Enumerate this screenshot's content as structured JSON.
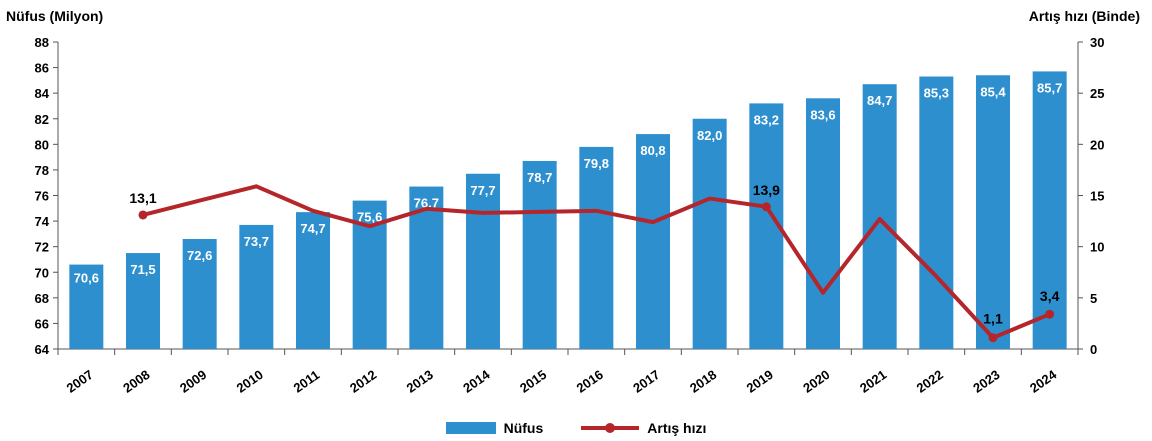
{
  "chart_data": {
    "type": "bar",
    "left_axis_title": "Nüfus (Milyon)",
    "right_axis_title": "Artış hızı (Binde)",
    "categories": [
      "2007",
      "2008",
      "2009",
      "2010",
      "2011",
      "2012",
      "2013",
      "2014",
      "2015",
      "2016",
      "2017",
      "2018",
      "2019",
      "2020",
      "2021",
      "2022",
      "2023",
      "2024"
    ],
    "series": [
      {
        "name": "Nüfus",
        "type": "bar",
        "axis": "left",
        "values": [
          70.6,
          71.5,
          72.6,
          73.7,
          74.7,
          75.6,
          76.7,
          77.7,
          78.7,
          79.8,
          80.8,
          82.0,
          83.2,
          83.6,
          84.7,
          85.3,
          85.4,
          85.7
        ],
        "labels": [
          "70,6",
          "71,5",
          "72,6",
          "73,7",
          "74,7",
          "75,6",
          "76,7",
          "77,7",
          "78,7",
          "79,8",
          "80,8",
          "82,0",
          "83,2",
          "83,6",
          "84,7",
          "85,3",
          "85,4",
          "85,7"
        ]
      },
      {
        "name": "Artış hızı",
        "type": "line",
        "axis": "right",
        "values": [
          null,
          13.1,
          14.5,
          15.9,
          13.5,
          12.0,
          13.7,
          13.3,
          13.4,
          13.5,
          12.4,
          14.7,
          13.9,
          5.5,
          12.7,
          7.1,
          1.1,
          3.4
        ],
        "point_labels": {
          "1": "13,1",
          "12": "13,9",
          "16": "1,1",
          "17": "3,4"
        }
      }
    ],
    "left_axis": {
      "min": 64,
      "max": 88,
      "ticks": [
        "64",
        "66",
        "68",
        "70",
        "72",
        "74",
        "76",
        "78",
        "80",
        "82",
        "84",
        "86",
        "88"
      ]
    },
    "right_axis": {
      "min": 0,
      "max": 30,
      "ticks": [
        "0",
        "5",
        "10",
        "15",
        "20",
        "25",
        "30"
      ]
    },
    "grid": false,
    "legend_position": "bottom",
    "colors": {
      "bar": "#2e8fcf",
      "line": "#b5262b",
      "axis": "#555555",
      "bar_label": "#ffffff"
    }
  }
}
